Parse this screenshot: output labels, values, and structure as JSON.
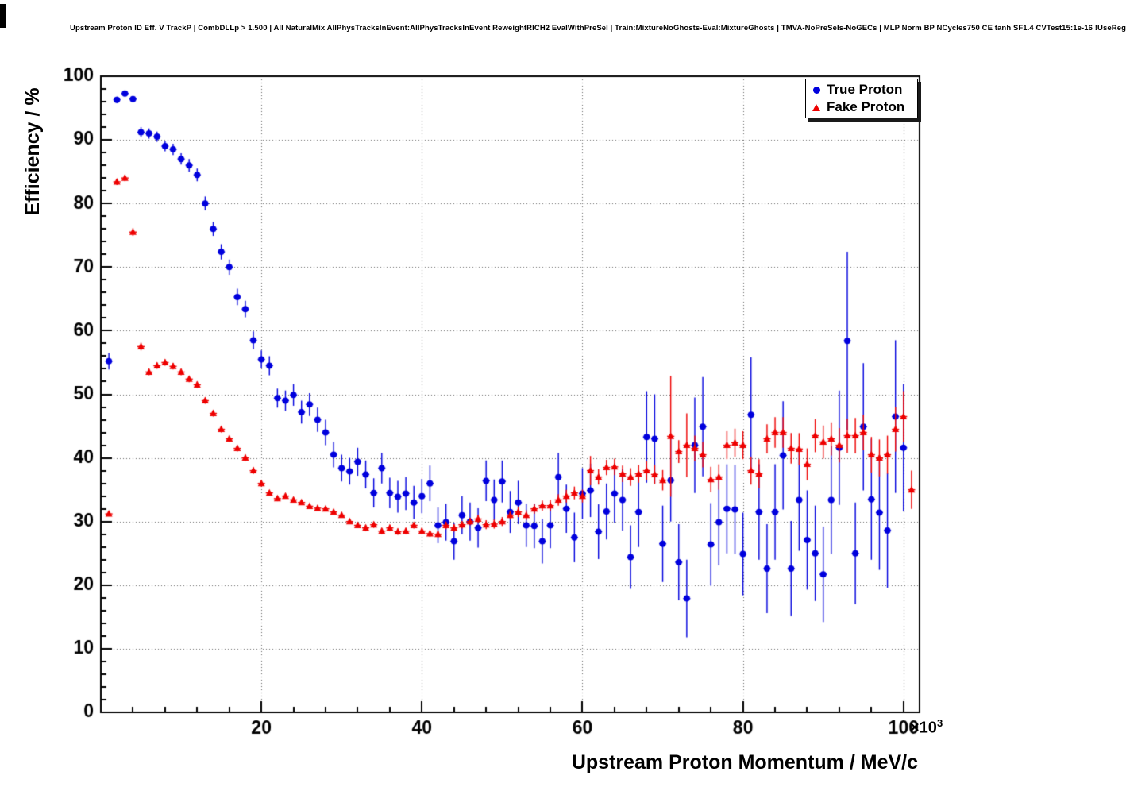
{
  "chart_data": {
    "type": "scatter",
    "title": "Upstream Proton ID Eff. V TrackP | CombDLLp > 1.500 | All NaturalMix AllPhysTracksInEvent:AllPhysTracksInEvent ReweightRICH2 EvalWithPreSel | Train:MixtureNoGhosts-Eval:MixtureGhosts | TMVA-NoPreSels-NoGECs | MLP Norm BP NCycles750 CE tanh SF1.4 CVTest15:1e-16 !UseReg",
    "xlabel": "Upstream Proton Momentum / MeV/c",
    "ylabel": "Efficiency / %",
    "x_multiplier": {
      "base": "×10",
      "exp": "3"
    },
    "xlim": [
      0,
      102
    ],
    "ylim": [
      0,
      100
    ],
    "x_ticks": [
      20,
      40,
      60,
      80,
      100
    ],
    "y_ticks": [
      0,
      10,
      20,
      30,
      40,
      50,
      60,
      70,
      80,
      90,
      100
    ],
    "grid": true,
    "grid_style": "dotted",
    "legend_position": "top-right",
    "colors": {
      "true_proton": "#0000dd",
      "fake_proton": "#ee0000",
      "grid": "#666666",
      "frame": "#000000"
    },
    "x_units_note": "momentum values in units of 10^3 MeV/c",
    "series": [
      {
        "name": "True Proton",
        "marker": "circle",
        "color": "#0000dd",
        "x": [
          1,
          2,
          3,
          4,
          5,
          6,
          7,
          8,
          9,
          10,
          11,
          12,
          13,
          14,
          15,
          16,
          17,
          18,
          19,
          20,
          21,
          22,
          23,
          24,
          25,
          26,
          27,
          28,
          29,
          30,
          31,
          32,
          33,
          34,
          35,
          36,
          37,
          38,
          39,
          40,
          41,
          42,
          43,
          44,
          45,
          46,
          47,
          48,
          49,
          50,
          51,
          52,
          53,
          54,
          55,
          56,
          57,
          58,
          59,
          60,
          61,
          62,
          63,
          64,
          65,
          66,
          67,
          68,
          69,
          70,
          71,
          72,
          73,
          74,
          75,
          76,
          77,
          78,
          79,
          80,
          81,
          82,
          83,
          84,
          85,
          86,
          87,
          88,
          89,
          90,
          91,
          92,
          93,
          94,
          95,
          96,
          97,
          98,
          99,
          100
        ],
        "y": [
          55.2,
          96.3,
          97.3,
          96.4,
          91.2,
          91.0,
          90.5,
          89.0,
          88.5,
          87.0,
          86.0,
          84.5,
          80.0,
          76.0,
          72.4,
          70.0,
          65.3,
          63.4,
          58.5,
          55.5,
          54.5,
          49.4,
          49.0,
          49.9,
          47.2,
          48.4,
          46.0,
          44.0,
          40.5,
          38.4,
          37.9,
          39.4,
          37.4,
          34.5,
          38.4,
          34.5,
          33.9,
          34.4,
          33.0,
          34.0,
          36.0,
          29.4,
          29.9,
          26.9,
          31.0,
          30.0,
          29.0,
          36.4,
          33.4,
          36.3,
          31.5,
          33.0,
          29.4,
          29.3,
          26.9,
          29.4,
          37.0,
          32.0,
          27.5,
          34.4,
          34.9,
          28.4,
          31.6,
          34.4,
          33.4,
          24.4,
          31.5,
          43.3,
          43.0,
          26.5,
          36.5,
          23.6,
          17.9,
          42.0,
          44.9,
          26.4,
          29.9,
          32.0,
          31.9,
          24.9,
          46.8,
          31.5,
          22.6,
          31.5,
          40.4,
          22.6,
          33.4,
          27.1,
          25.0,
          21.7,
          33.4,
          41.6,
          58.4,
          25.0,
          44.9,
          33.5,
          31.4,
          28.6,
          46.5,
          41.6
        ],
        "ey": [
          1.3,
          0.5,
          0.4,
          0.5,
          0.8,
          0.8,
          0.8,
          0.8,
          0.9,
          0.9,
          1.0,
          1.0,
          1.1,
          1.1,
          1.2,
          1.2,
          1.3,
          1.3,
          1.4,
          1.4,
          1.5,
          1.5,
          1.6,
          1.7,
          1.8,
          1.8,
          1.9,
          2.0,
          2.0,
          2.1,
          2.1,
          2.2,
          2.2,
          2.3,
          2.4,
          2.4,
          2.5,
          2.6,
          2.6,
          2.7,
          2.8,
          2.8,
          2.9,
          2.9,
          3.0,
          3.0,
          3.1,
          3.2,
          3.2,
          3.3,
          3.3,
          3.4,
          3.4,
          3.5,
          3.5,
          3.6,
          3.8,
          3.8,
          3.9,
          4.0,
          4.2,
          4.3,
          4.4,
          4.6,
          4.8,
          5.0,
          5.5,
          7.2,
          7.0,
          6.0,
          6.5,
          6.0,
          6.1,
          7.5,
          7.8,
          6.5,
          6.8,
          7.0,
          7.0,
          6.5,
          9.0,
          7.5,
          7.0,
          7.5,
          8.5,
          7.5,
          8.0,
          7.8,
          7.5,
          7.5,
          8.5,
          9.0,
          14.0,
          8.0,
          10.0,
          9.5,
          9.0,
          9.0,
          12.0,
          10.0
        ]
      },
      {
        "name": "Fake Proton",
        "marker": "triangle",
        "color": "#ee0000",
        "x": [
          1,
          2,
          3,
          4,
          5,
          6,
          7,
          8,
          9,
          10,
          11,
          12,
          13,
          14,
          15,
          16,
          17,
          18,
          19,
          20,
          21,
          22,
          23,
          24,
          25,
          26,
          27,
          28,
          29,
          30,
          31,
          32,
          33,
          34,
          35,
          36,
          37,
          38,
          39,
          40,
          41,
          42,
          43,
          44,
          45,
          46,
          47,
          48,
          49,
          50,
          51,
          52,
          53,
          54,
          55,
          56,
          57,
          58,
          59,
          60,
          61,
          62,
          63,
          64,
          65,
          66,
          67,
          68,
          69,
          70,
          71,
          72,
          73,
          74,
          75,
          76,
          77,
          78,
          79,
          80,
          81,
          82,
          83,
          84,
          85,
          86,
          87,
          88,
          89,
          90,
          91,
          92,
          93,
          94,
          95,
          96,
          97,
          98,
          99,
          100,
          101
        ],
        "y": [
          31.2,
          83.4,
          84.0,
          75.5,
          57.5,
          53.5,
          54.5,
          55.0,
          54.4,
          53.5,
          52.4,
          51.5,
          49.0,
          47.0,
          44.5,
          43.0,
          41.5,
          40.0,
          38.0,
          36.0,
          34.5,
          33.6,
          34.0,
          33.4,
          33.0,
          32.4,
          32.1,
          32.0,
          31.5,
          31.0,
          30.0,
          29.4,
          29.0,
          29.5,
          28.5,
          29.0,
          28.4,
          28.5,
          29.4,
          28.5,
          28.1,
          28.0,
          29.4,
          29.0,
          29.5,
          30.0,
          30.4,
          29.5,
          29.6,
          30.0,
          31.0,
          31.5,
          31.0,
          32.0,
          32.5,
          32.5,
          33.4,
          34.0,
          34.5,
          34.0,
          38.0,
          37.0,
          38.5,
          38.6,
          37.5,
          37.0,
          37.5,
          38.0,
          37.4,
          36.5,
          43.4,
          41.0,
          42.0,
          41.5,
          40.5,
          36.6,
          37.0,
          42.0,
          42.4,
          42.0,
          38.0,
          37.5,
          43.0,
          44.0,
          44.0,
          41.5,
          41.4,
          39.0,
          43.5,
          42.5,
          43.0,
          42.0,
          43.5,
          43.5,
          44.0,
          40.5,
          40.0,
          40.5,
          44.5,
          46.5,
          35.0
        ],
        "ey": [
          0.3,
          0.5,
          0.5,
          0.6,
          0.6,
          0.5,
          0.5,
          0.5,
          0.5,
          0.5,
          0.5,
          0.5,
          0.5,
          0.5,
          0.5,
          0.5,
          0.5,
          0.5,
          0.5,
          0.5,
          0.4,
          0.4,
          0.4,
          0.4,
          0.4,
          0.4,
          0.4,
          0.4,
          0.4,
          0.4,
          0.4,
          0.4,
          0.5,
          0.5,
          0.5,
          0.5,
          0.5,
          0.5,
          0.5,
          0.5,
          0.5,
          0.6,
          0.6,
          0.6,
          0.6,
          0.6,
          0.7,
          0.7,
          0.7,
          0.7,
          0.7,
          0.8,
          0.8,
          0.8,
          0.8,
          0.9,
          0.9,
          1.0,
          1.0,
          1.0,
          2.3,
          1.2,
          1.2,
          1.3,
          1.3,
          1.4,
          1.4,
          1.5,
          1.5,
          1.6,
          9.5,
          1.8,
          5.0,
          2.0,
          2.0,
          2.0,
          2.0,
          2.2,
          2.2,
          2.2,
          2.2,
          2.3,
          2.3,
          2.4,
          2.4,
          2.4,
          2.5,
          2.5,
          2.6,
          2.6,
          2.6,
          2.7,
          2.7,
          2.8,
          2.8,
          2.8,
          2.9,
          3.0,
          3.5,
          4.0,
          3.0
        ]
      }
    ]
  }
}
